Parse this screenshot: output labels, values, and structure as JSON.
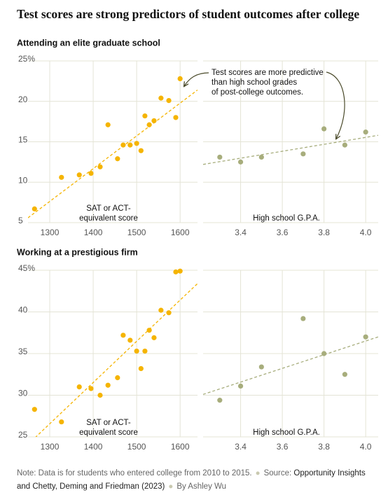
{
  "title": "Test scores are strong predictors of student outcomes after college",
  "chart_data": [
    {
      "type": "scatter",
      "title": "Attending an elite graduate school",
      "color": "#f5b400",
      "x": [
        1265,
        1327,
        1368,
        1395,
        1416,
        1434,
        1456,
        1469,
        1485,
        1500,
        1510,
        1519,
        1529,
        1540,
        1556,
        1574,
        1590,
        1600
      ],
      "values": [
        6.7,
        10.6,
        10.9,
        11.1,
        11.9,
        17.1,
        12.9,
        14.6,
        14.6,
        14.8,
        13.9,
        18.2,
        17.1,
        17.6,
        20.4,
        20.1,
        18.0,
        22.8
      ],
      "trend": {
        "x": [
          1250,
          1640
        ],
        "values": [
          5.6,
          21.4
        ]
      },
      "xlim": [
        1250,
        1640
      ],
      "xticks": [
        1300,
        1400,
        1500,
        1600
      ],
      "ylim": [
        5,
        25
      ],
      "yticks": [
        5,
        10,
        15,
        20,
        {
          "value": 25,
          "label": "25%"
        }
      ],
      "ytick_labels": true,
      "x_label": [
        "SAT or ACT-",
        "equivalent score"
      ]
    },
    {
      "type": "scatter",
      "color": "#a7ad7c",
      "x": [
        3.3,
        3.4,
        3.5,
        3.7,
        3.8,
        3.9,
        4.0
      ],
      "values": [
        13.1,
        12.5,
        13.1,
        13.5,
        16.6,
        14.6,
        16.2
      ],
      "trend": {
        "x": [
          3.22,
          4.06
        ],
        "values": [
          12.2,
          15.8
        ]
      },
      "xlim": [
        3.22,
        4.06
      ],
      "xticks": [
        3.4,
        3.6,
        3.8,
        {
          "value": 4,
          "label": "4.0"
        }
      ],
      "ylim": [
        5,
        25
      ],
      "yticks": [
        5,
        10,
        15,
        20,
        25
      ],
      "ytick_labels": false,
      "x_label": [
        "High school G.P.A."
      ],
      "annotation": [
        "Test scores are more predictive",
        "than high school grades",
        "of post-college outcomes."
      ]
    },
    {
      "type": "scatter",
      "title": "Working at a prestigious firm",
      "color": "#f5b400",
      "x": [
        1265,
        1327,
        1368,
        1395,
        1416,
        1434,
        1456,
        1469,
        1485,
        1500,
        1510,
        1519,
        1529,
        1540,
        1556,
        1574,
        1590,
        1600
      ],
      "values": [
        28.3,
        26.8,
        31.0,
        30.8,
        30.0,
        31.2,
        32.1,
        37.2,
        36.6,
        35.3,
        33.2,
        35.3,
        37.8,
        36.9,
        40.2,
        39.9,
        44.8,
        44.9
      ],
      "trend": {
        "x": [
          1250,
          1640
        ],
        "values": [
          24.1,
          43.4
        ]
      },
      "xlim": [
        1250,
        1640
      ],
      "xticks": [
        1300,
        1400,
        1500,
        1600
      ],
      "ylim": [
        25,
        45
      ],
      "yticks": [
        25,
        30,
        35,
        40,
        {
          "value": 45,
          "label": "45%"
        }
      ],
      "ytick_labels": true,
      "x_label": [
        "SAT or ACT-",
        "equivalent score"
      ]
    },
    {
      "type": "scatter",
      "color": "#a7ad7c",
      "x": [
        3.3,
        3.4,
        3.5,
        3.7,
        3.8,
        3.9,
        4.0
      ],
      "values": [
        29.4,
        31.1,
        33.4,
        39.2,
        35.0,
        32.5,
        37.0
      ],
      "trend": {
        "x": [
          3.22,
          4.06
        ],
        "values": [
          30.1,
          37.0
        ]
      },
      "xlim": [
        3.22,
        4.06
      ],
      "xticks": [
        3.4,
        3.6,
        3.8,
        {
          "value": 4,
          "label": "4.0"
        }
      ],
      "ylim": [
        25,
        45
      ],
      "yticks": [
        25,
        30,
        35,
        40,
        45
      ],
      "ytick_labels": false,
      "x_label": [
        "High school G.P.A."
      ]
    }
  ],
  "footer": {
    "note": "Note: Data is for students who entered college from 2010 to 2015.",
    "source_label": "Source:",
    "source": "Opportunity Insights and Chetty, Deming and Friedman (2023)",
    "byline": "By Ashley Wu"
  }
}
